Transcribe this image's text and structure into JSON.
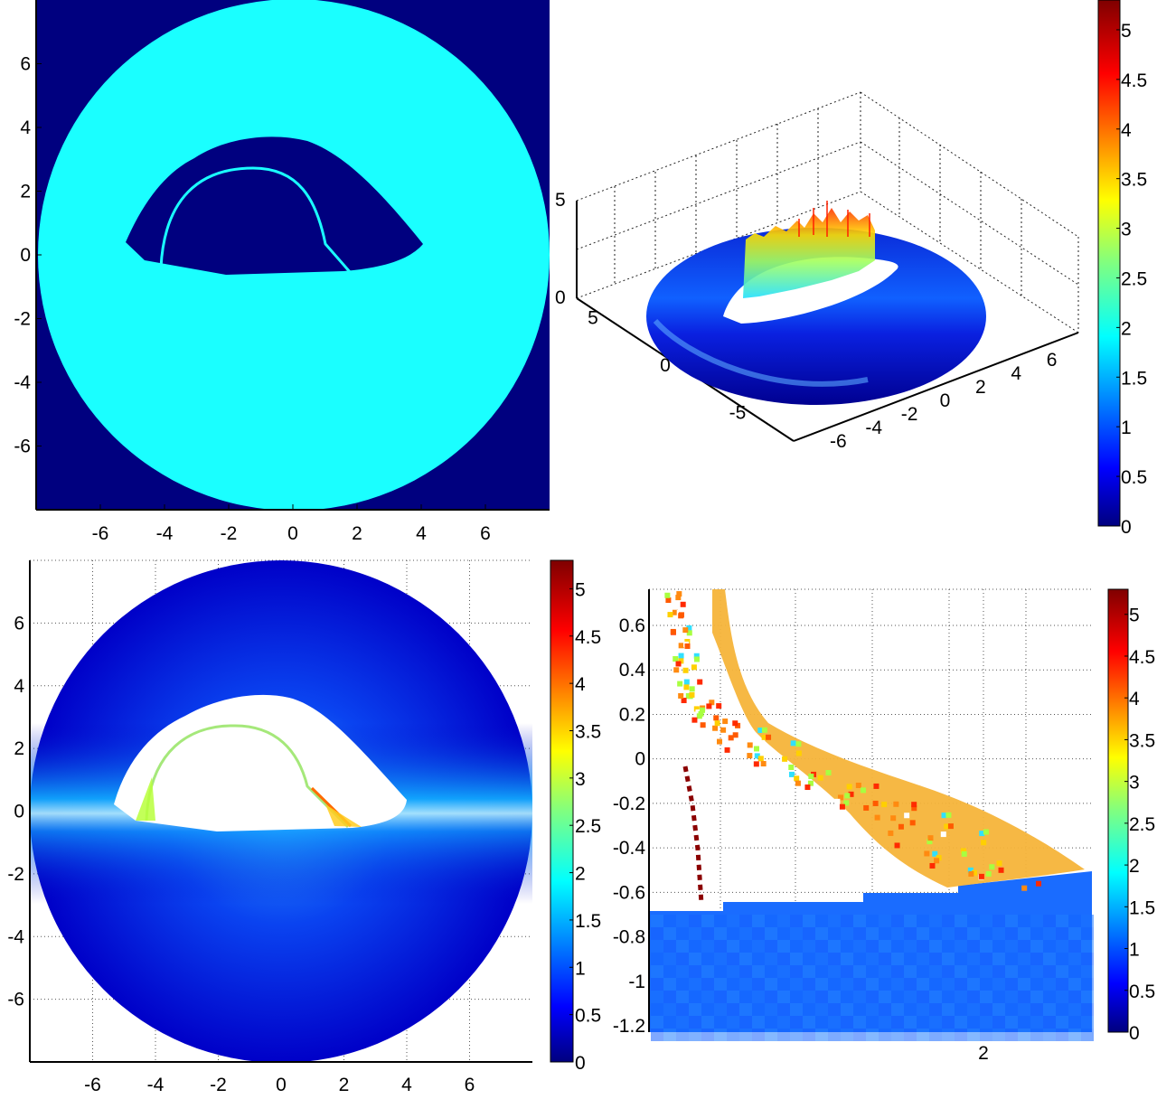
{
  "colormap": {
    "name": "jet",
    "stops": [
      "#00007f",
      "#0000ff",
      "#0080ff",
      "#00ffff",
      "#80ff80",
      "#ffff00",
      "#ff8000",
      "#ff0000",
      "#7f0000"
    ]
  },
  "chart_data": [
    {
      "id": "top-left",
      "type": "heatmap",
      "description_role": "binary region map on disk",
      "xticks": [
        "-6",
        "-4",
        "-2",
        "0",
        "2",
        "4",
        "6"
      ],
      "yticks": [
        "6",
        "4",
        "2",
        "0",
        "-2",
        "-4",
        "-6"
      ],
      "xlim": [
        -8,
        8
      ],
      "ylim": [
        -8,
        8
      ],
      "grid": false,
      "colors": {
        "background": "#00007f",
        "region": "#1affff"
      },
      "disk_radius": 8,
      "hole_outline": [
        [
          -5,
          0.5
        ],
        [
          -4,
          2
        ],
        [
          -2,
          3.6
        ],
        [
          0,
          3.7
        ],
        [
          2,
          2.8
        ],
        [
          4,
          0.6
        ],
        [
          3,
          -0.3
        ],
        [
          -4,
          -0.2
        ]
      ],
      "arc": {
        "center": [
          -1.1,
          0
        ],
        "rx": 2.7,
        "ry": 2.7
      }
    },
    {
      "id": "top-right",
      "type": "surface3d",
      "zlim": [
        0,
        5
      ],
      "zticks": [
        "5",
        "0"
      ],
      "xticks": [
        "-6",
        "-4",
        "-2",
        "0",
        "2",
        "4",
        "6"
      ],
      "yticks": [
        "-5",
        "0",
        "5"
      ],
      "grid": true,
      "colorbar": {
        "ticks": [
          "5",
          "4.5",
          "4",
          "3.5",
          "3",
          "2.5",
          "2",
          "1.5",
          "1",
          "0.5",
          "0"
        ],
        "range": [
          0,
          5.3
        ]
      }
    },
    {
      "id": "bottom-left",
      "type": "heatmap",
      "xticks": [
        "-6",
        "-4",
        "-2",
        "0",
        "2",
        "4",
        "6"
      ],
      "yticks": [
        "6",
        "4",
        "2",
        "0",
        "-2",
        "-4",
        "-6"
      ],
      "xlim": [
        -8,
        8
      ],
      "ylim": [
        -8,
        8
      ],
      "grid": true,
      "disk_radius": 8,
      "colorbar": {
        "ticks": [
          "5",
          "4.5",
          "4",
          "3.5",
          "3",
          "2.5",
          "2",
          "1.5",
          "1",
          "0.5",
          "0"
        ],
        "range": [
          0,
          5.3
        ]
      }
    },
    {
      "id": "bottom-right",
      "type": "heatmap",
      "xticks": [
        "2"
      ],
      "yticks": [
        "0.6",
        "0.4",
        "0.2",
        "0",
        "-0.2",
        "-0.4",
        "-0.6",
        "-0.8",
        "-1",
        "-1.2"
      ],
      "ylim": [
        -1.25,
        0.75
      ],
      "grid": true,
      "band_points": [
        [
          0.65,
          0.75
        ],
        [
          0.7,
          0.5
        ],
        [
          0.75,
          0.3
        ],
        [
          0.85,
          0.15
        ],
        [
          1.1,
          0.05
        ],
        [
          1.4,
          -0.1
        ],
        [
          1.7,
          -0.25
        ],
        [
          2.0,
          -0.4
        ],
        [
          2.3,
          -0.5
        ]
      ],
      "floor_level": [
        [
          0.4,
          -0.68
        ],
        [
          0.6,
          -0.68
        ],
        [
          0.6,
          -0.64
        ],
        [
          1.5,
          -0.64
        ],
        [
          1.5,
          -0.6
        ],
        [
          2.1,
          -0.6
        ],
        [
          2.1,
          -0.56
        ],
        [
          2.7,
          -0.5
        ]
      ],
      "colorbar": {
        "ticks": [
          "5",
          "4.5",
          "4",
          "3.5",
          "3",
          "2.5",
          "2",
          "1.5",
          "1",
          "0.5",
          "0"
        ],
        "range": [
          0,
          5.3
        ]
      }
    }
  ]
}
